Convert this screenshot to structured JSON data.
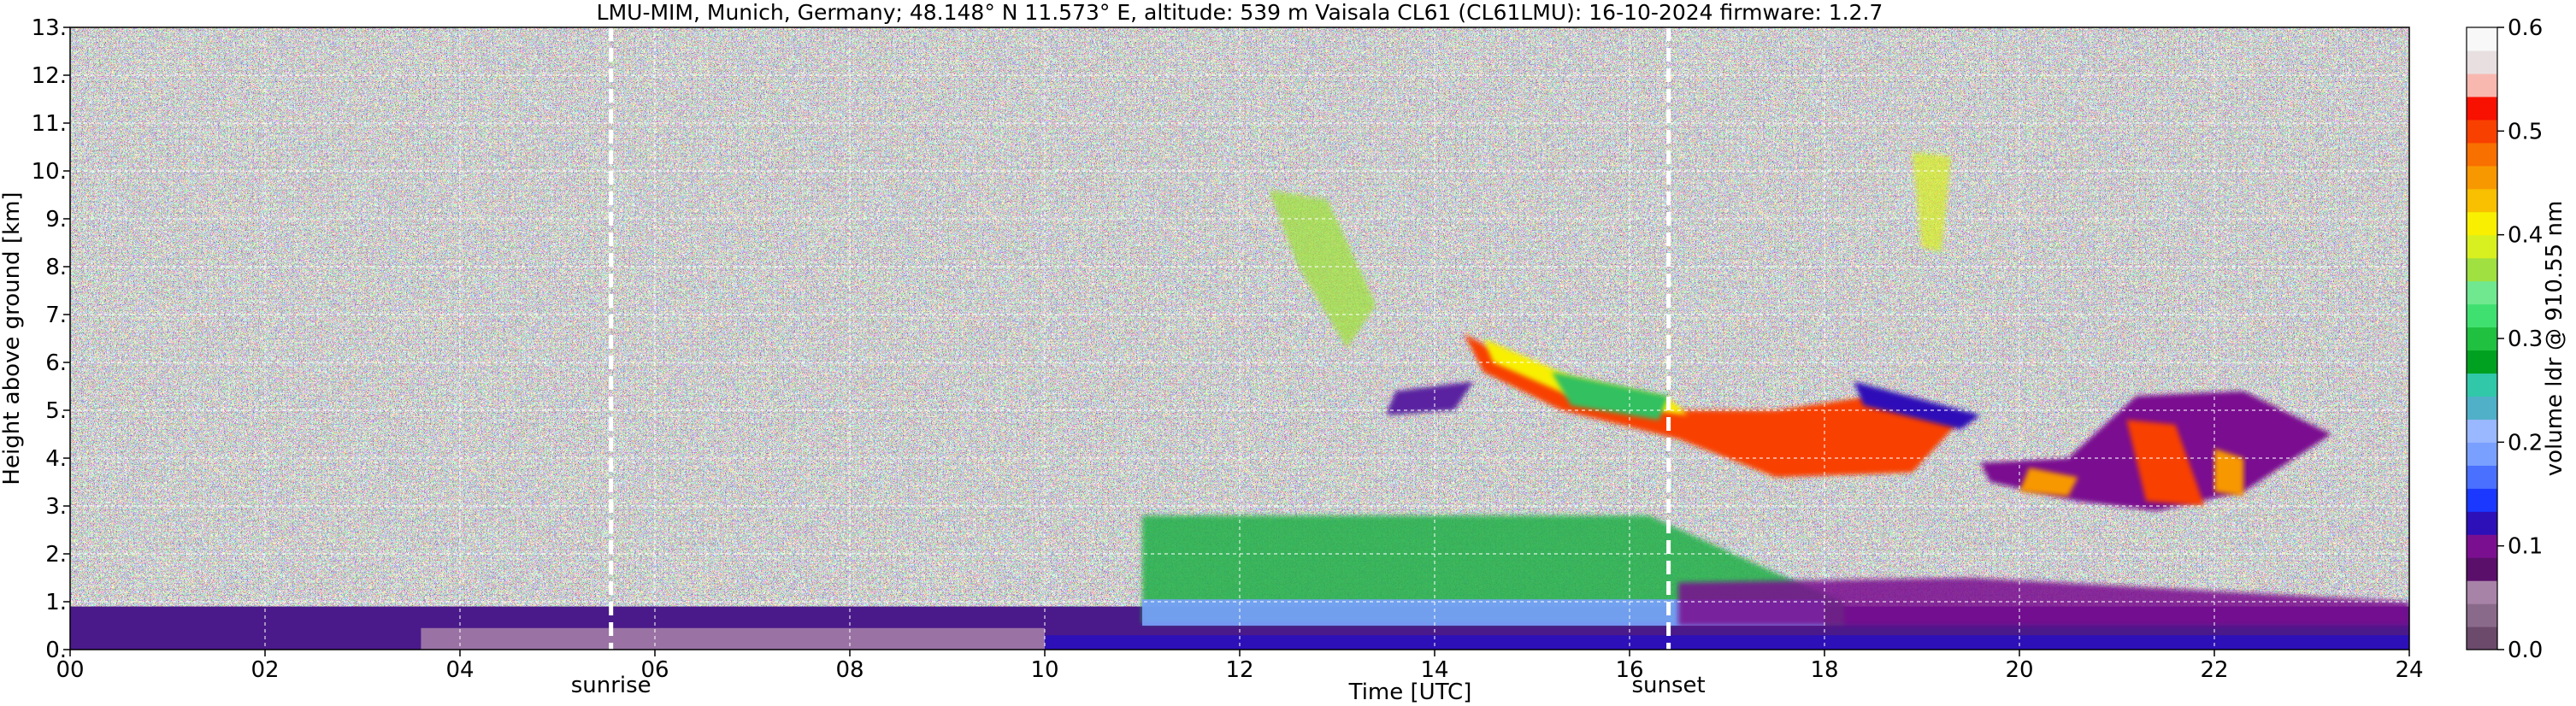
{
  "chart_data": {
    "type": "heatmap",
    "title": "LMU-MIM, Munich, Germany; 48.148° N 11.573° E, altitude: 539 m    Vaisala CL61 (CL61LMU): 16-10-2024    firmware: 1.2.7",
    "xlabel": "Time [UTC]",
    "ylabel": "Height above ground [km]",
    "xlim": [
      0,
      24
    ],
    "ylim": [
      0,
      13
    ],
    "x_ticks": [
      "00",
      "02",
      "04",
      "06",
      "08",
      "10",
      "12",
      "14",
      "16",
      "18",
      "20",
      "22",
      "24"
    ],
    "y_ticks": [
      "0.",
      "1.",
      "2.",
      "3.",
      "4.",
      "5.",
      "6.",
      "7.",
      "8.",
      "9.",
      "10.",
      "11.",
      "12.",
      "13."
    ],
    "grid": true,
    "markers": [
      {
        "label": "sunrise",
        "x": 5.55
      },
      {
        "label": "sunset",
        "x": 16.4
      }
    ],
    "colorbar": {
      "label": "volume ldr @ 910.55 nm",
      "range": [
        0.0,
        0.6
      ],
      "ticks": [
        "0.0",
        "0.1",
        "0.2",
        "0.3",
        "0.4",
        "0.5",
        "0.6"
      ],
      "colors": [
        "#6b4a6b",
        "#8a6a8a",
        "#a883a8",
        "#5a0f6b",
        "#7a1090",
        "#2d10b8",
        "#1a38ff",
        "#4a70ff",
        "#7aa0ff",
        "#9ab8ff",
        "#50b0c8",
        "#30c8a8",
        "#00a020",
        "#20c040",
        "#40e070",
        "#70e890",
        "#a0e040",
        "#d8f020",
        "#f8f000",
        "#f8c000",
        "#f89800",
        "#f87000",
        "#f84000",
        "#f81000",
        "#f8b8b0",
        "#e8e0e0",
        "#f8f8f8"
      ]
    },
    "features": [
      {
        "name": "noise background",
        "x_range": [
          0,
          24
        ],
        "height_km": [
          0.9,
          13
        ]
      },
      {
        "name": "near-surface layer",
        "x_range": [
          0,
          24
        ],
        "height_km": [
          0,
          0.9
        ],
        "value": 0.08
      },
      {
        "name": "aerosol layer",
        "x_range": [
          11,
          18
        ],
        "height_km": [
          0.5,
          2.8
        ],
        "value": 0.2
      },
      {
        "name": "cirrus band",
        "x_range": [
          14.3,
          19.5
        ],
        "height_km": [
          3.6,
          6.5
        ],
        "value": 0.43
      },
      {
        "name": "cloud cluster",
        "x_range": [
          19.5,
          23.2
        ],
        "height_km": [
          2.9,
          5.4
        ],
        "value": 0.35
      }
    ]
  }
}
